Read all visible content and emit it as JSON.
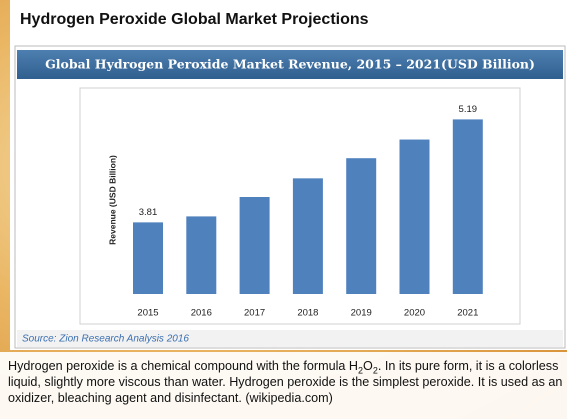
{
  "heading": "Hydrogen Peroxide Global Market Projections",
  "chart_data": {
    "type": "bar",
    "title": "Global Hydrogen Peroxide Market Revenue, 2015 – 2021(USD Billion)",
    "ylabel": "Revenue (USD Billion)",
    "categories": [
      "2015",
      "2016",
      "2017",
      "2018",
      "2019",
      "2020",
      "2021"
    ],
    "values": [
      3.81,
      3.89,
      4.15,
      4.4,
      4.67,
      4.92,
      5.19
    ],
    "value_labels": [
      "3.81",
      null,
      null,
      null,
      null,
      null,
      "5.19"
    ],
    "color": "#4f81bd",
    "ylim": [
      2.85,
      5.45
    ],
    "source": "Source: Zion Research Analysis 2016"
  },
  "paragraph": [
    "Hydrogen peroxide is a chemical compound with the formula H",
    "2",
    "O",
    "2",
    ". In its pure form, it is a colorless liquid, slightly more viscous than water. Hydrogen peroxide is the simplest peroxide. It is used as an oxidizer, bleaching agent and disinfectant. (wikipedia.com)"
  ]
}
